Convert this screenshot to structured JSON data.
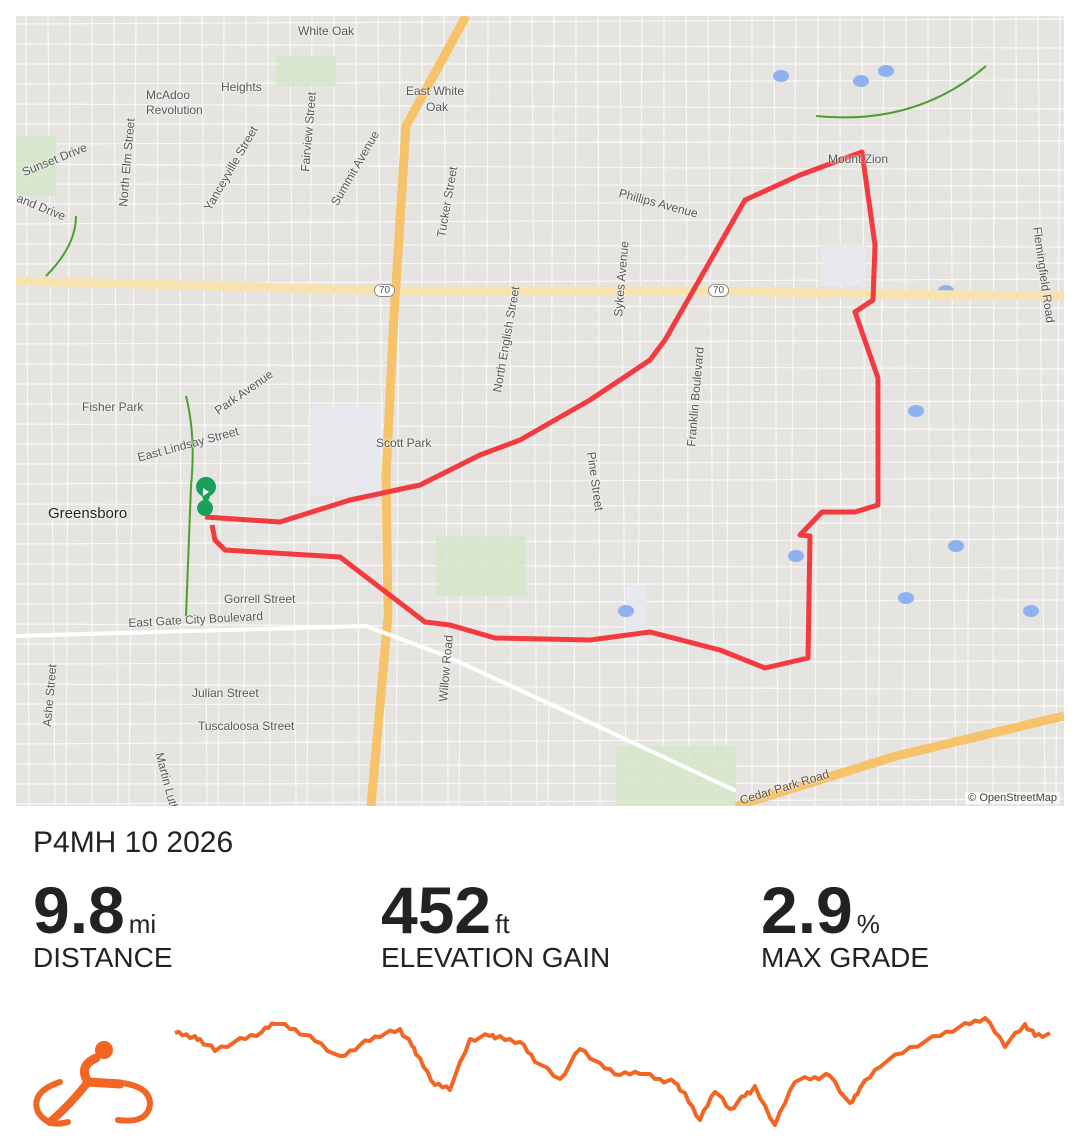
{
  "route": {
    "title": "P4MH 10 2026",
    "route_color": "#f23a3f",
    "start_marker_color": "#1aa05a"
  },
  "map": {
    "attribution": "© OpenStreetMap",
    "labels": [
      {
        "text": "White Oak",
        "x": 0
      },
      {
        "text": "McAdoo",
        "x": 0
      },
      {
        "text": "Heights",
        "x": 0
      },
      {
        "text": "Revolution",
        "x": 0
      },
      {
        "text": "East White",
        "x": 0
      },
      {
        "text": "Oak",
        "x": 0
      },
      {
        "text": "Sunset Drive",
        "x": 0
      },
      {
        "text": "and Drive",
        "x": 0
      },
      {
        "text": "North Elm Street",
        "x": 0
      },
      {
        "text": "Yanceyville Street",
        "x": 0
      },
      {
        "text": "Fairview Street",
        "x": 0
      },
      {
        "text": "Summit Avenue",
        "x": 0
      },
      {
        "text": "Tucker Street",
        "x": 0
      },
      {
        "text": "Phillips Avenue",
        "x": 0
      },
      {
        "text": "Mount Zion",
        "x": 0
      },
      {
        "text": "Flemingfield Road",
        "x": 0
      },
      {
        "text": "Sykes Avenue",
        "x": 0
      },
      {
        "text": "North English Street",
        "x": 0
      },
      {
        "text": "Fisher Park",
        "x": 0
      },
      {
        "text": "Park Avenue",
        "x": 0
      },
      {
        "text": "East Lindsay Street",
        "x": 0
      },
      {
        "text": "Scott Park",
        "x": 0
      },
      {
        "text": "Pine Street",
        "x": 0
      },
      {
        "text": "Franklin Boulevard",
        "x": 0
      },
      {
        "text": "Greensboro",
        "x": 0
      },
      {
        "text": "Gorrell Street",
        "x": 0
      },
      {
        "text": "East Gate City Boulevard",
        "x": 0
      },
      {
        "text": "Julian Street",
        "x": 0
      },
      {
        "text": "Tuscaloosa Street",
        "x": 0
      },
      {
        "text": "Willow Road",
        "x": 0
      },
      {
        "text": "Ashe Street",
        "x": 0
      },
      {
        "text": "Martin Luther King",
        "x": 0
      },
      {
        "text": "Cedar Park Road",
        "x": 0
      },
      {
        "text": "70",
        "x": 0
      },
      {
        "text": "70",
        "x": 0
      }
    ]
  },
  "stats": [
    {
      "value": "9.8",
      "unit": "mi",
      "label": "DISTANCE"
    },
    {
      "value": "452",
      "unit": "ft",
      "label": "ELEVATION GAIN"
    },
    {
      "value": "2.9",
      "unit": "%",
      "label": "MAX GRADE"
    }
  ],
  "profile": {
    "color": "#f26522",
    "activity_icon": "cyclist-icon"
  }
}
